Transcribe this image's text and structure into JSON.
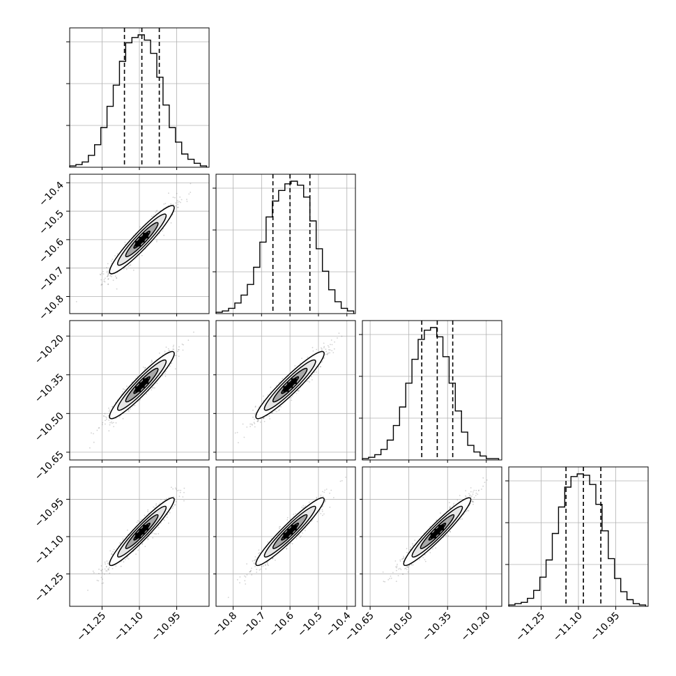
{
  "chart_data": {
    "type": "corner",
    "title": "",
    "xlabel": "",
    "ylabel": "",
    "grid": true,
    "parameters": [
      {
        "range": [
          -11.38,
          -10.82
        ],
        "ticks": [
          -11.25,
          -11.1,
          -10.95
        ],
        "tick_labels": [
          "−11.25",
          "−11.10",
          "−10.95"
        ],
        "quantiles": [
          -11.16,
          -11.09,
          -11.02
        ],
        "histogram": {
          "bin_edges": [
            -11.38,
            -11.355,
            -11.33,
            -11.305,
            -11.28,
            -11.255,
            -11.23,
            -11.205,
            -11.18,
            -11.155,
            -11.13,
            -11.105,
            -11.08,
            -11.055,
            -11.03,
            -11.005,
            -10.98,
            -10.955,
            -10.93,
            -10.905,
            -10.88,
            -10.855,
            -10.83
          ],
          "counts": [
            1,
            2,
            4,
            9,
            17,
            30,
            46,
            62,
            80,
            94,
            98,
            100,
            96,
            86,
            68,
            47,
            30,
            19,
            10,
            6,
            3,
            1
          ]
        }
      },
      {
        "range": [
          -10.86,
          -10.37
        ],
        "ticks": [
          -10.8,
          -10.7,
          -10.6,
          -10.5,
          -10.4
        ],
        "tick_labels": [
          "−10.8",
          "−10.7",
          "−10.6",
          "−10.5",
          "−10.4"
        ],
        "quantiles": [
          -10.66,
          -10.6,
          -10.53
        ],
        "histogram": {
          "bin_edges": [
            -10.86,
            -10.838,
            -10.816,
            -10.794,
            -10.772,
            -10.75,
            -10.728,
            -10.706,
            -10.684,
            -10.662,
            -10.64,
            -10.618,
            -10.596,
            -10.574,
            -10.552,
            -10.53,
            -10.508,
            -10.486,
            -10.464,
            -10.442,
            -10.42,
            -10.398,
            -10.376
          ],
          "counts": [
            1,
            2,
            4,
            8,
            14,
            22,
            35,
            54,
            73,
            85,
            93,
            98,
            100,
            97,
            88,
            70,
            49,
            32,
            18,
            9,
            4,
            2
          ]
        }
      },
      {
        "range": [
          -10.68,
          -10.14
        ],
        "ticks": [
          -10.65,
          -10.5,
          -10.35,
          -10.2
        ],
        "tick_labels": [
          "−10.65",
          "−10.50",
          "−10.35",
          "−10.20"
        ],
        "quantiles": [
          -10.45,
          -10.39,
          -10.33
        ],
        "histogram": {
          "bin_edges": [
            -10.68,
            -10.656,
            -10.632,
            -10.608,
            -10.584,
            -10.56,
            -10.536,
            -10.512,
            -10.488,
            -10.464,
            -10.44,
            -10.416,
            -10.392,
            -10.368,
            -10.344,
            -10.32,
            -10.296,
            -10.272,
            -10.248,
            -10.224,
            -10.2,
            -10.176,
            -10.152
          ],
          "counts": [
            1,
            2,
            4,
            8,
            15,
            26,
            40,
            58,
            76,
            91,
            98,
            100,
            93,
            78,
            58,
            37,
            21,
            11,
            6,
            3,
            1,
            1
          ]
        }
      },
      {
        "range": [
          -11.38,
          -10.82
        ],
        "ticks": [
          -11.25,
          -11.1,
          -10.95
        ],
        "tick_labels": [
          "−11.25",
          "−11.10",
          "−10.95"
        ],
        "quantiles": [
          -11.15,
          -11.08,
          -11.01
        ],
        "histogram": {
          "bin_edges": [
            -11.38,
            -11.355,
            -11.33,
            -11.305,
            -11.28,
            -11.255,
            -11.23,
            -11.205,
            -11.18,
            -11.155,
            -11.13,
            -11.105,
            -11.08,
            -11.055,
            -11.03,
            -11.005,
            -10.98,
            -10.955,
            -10.93,
            -10.905,
            -10.88,
            -10.855,
            -10.83
          ],
          "counts": [
            1,
            2,
            3,
            6,
            12,
            22,
            35,
            55,
            75,
            90,
            98,
            100,
            99,
            92,
            77,
            57,
            36,
            21,
            11,
            5,
            2,
            1
          ]
        }
      }
    ],
    "pairs": [
      {
        "row": 1,
        "col": 0,
        "center": [
          -11.09,
          -10.6
        ],
        "sigma": [
          0.065,
          0.06
        ],
        "rho": 0.94
      },
      {
        "row": 2,
        "col": 0,
        "center": [
          -11.09,
          -10.39
        ],
        "sigma": [
          0.065,
          0.065
        ],
        "rho": 0.94
      },
      {
        "row": 2,
        "col": 1,
        "center": [
          -10.6,
          -10.39
        ],
        "sigma": [
          0.06,
          0.065
        ],
        "rho": 0.94
      },
      {
        "row": 3,
        "col": 0,
        "center": [
          -11.09,
          -11.08
        ],
        "sigma": [
          0.065,
          0.068
        ],
        "rho": 0.95
      },
      {
        "row": 3,
        "col": 1,
        "center": [
          -10.6,
          -11.08
        ],
        "sigma": [
          0.06,
          0.068
        ],
        "rho": 0.95
      },
      {
        "row": 3,
        "col": 2,
        "center": [
          -10.39,
          -11.08
        ],
        "sigma": [
          0.065,
          0.068
        ],
        "rho": 0.95
      }
    ],
    "contour_levels_sigma": [
      0.5,
      1.0,
      1.5,
      2.0
    ],
    "colors": {
      "line": "#000000",
      "grid": "#b0b0b0",
      "points": "#7a7a7a",
      "density_dark": "#000000",
      "density_light": "#ffffff",
      "background": "#ffffff"
    }
  }
}
